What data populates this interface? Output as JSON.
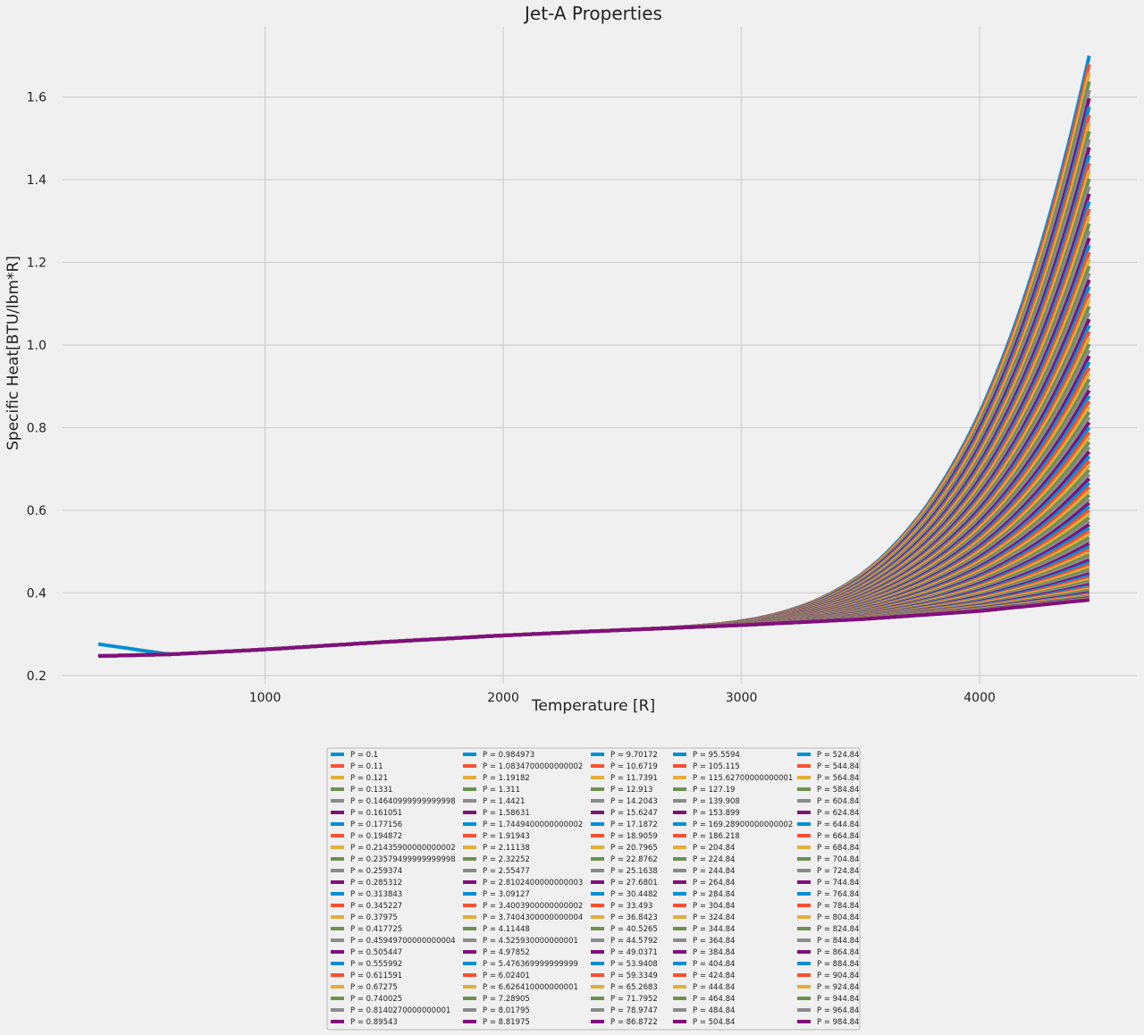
{
  "chart_data": {
    "type": "line",
    "title": "Jet-A Properties",
    "xlabel": "Temperature [R]",
    "ylabel": "Specific Heat[BTU/lbm*R]",
    "xlim": [
      150,
      4660
    ],
    "ylim": [
      0.18,
      1.77
    ],
    "x_ticks": [
      1000,
      2000,
      3000,
      4000
    ],
    "y_ticks": [
      0.2,
      0.4,
      0.6,
      0.8,
      1.0,
      1.2,
      1.4,
      1.6
    ],
    "x_tick_labels": [
      "1000",
      "2000",
      "3000",
      "4000"
    ],
    "y_tick_labels": [
      "0.2",
      "0.4",
      "0.6",
      "0.8",
      "1.0",
      "1.2",
      "1.4",
      "1.6"
    ],
    "grid": true,
    "legend_position": "below plot, centered, 5 columns",
    "style": "fivethirtyeight",
    "x_range_of_each_series": [
      300,
      4460
    ],
    "common_curve": {
      "x": [
        300,
        600,
        1000,
        1500,
        2000,
        2500,
        3000,
        3500,
        4000,
        4460
      ],
      "y": [
        0.247,
        0.251,
        0.263,
        0.281,
        0.297,
        0.31,
        0.322,
        0.336,
        0.356,
        0.383
      ]
    },
    "first_series_start_value": 0.276,
    "max_series_end_value": 1.7,
    "series_colors": [
      "#008fd5",
      "#fc4f30",
      "#e5ae38",
      "#6d904f",
      "#8b8b8b",
      "#810f7c"
    ],
    "series": [
      {
        "name": "P = 0.1"
      },
      {
        "name": "P = 0.11"
      },
      {
        "name": "P = 0.121"
      },
      {
        "name": "P = 0.1331"
      },
      {
        "name": "P = 0.14640999999999998"
      },
      {
        "name": "P = 0.161051"
      },
      {
        "name": "P = 0.177156"
      },
      {
        "name": "P = 0.194872"
      },
      {
        "name": "P = 0.21435900000000002"
      },
      {
        "name": "P = 0.23579499999999998"
      },
      {
        "name": "P = 0.259374"
      },
      {
        "name": "P = 0.285312"
      },
      {
        "name": "P = 0.313843"
      },
      {
        "name": "P = 0.345227"
      },
      {
        "name": "P = 0.37975"
      },
      {
        "name": "P = 0.417725"
      },
      {
        "name": "P = 0.45949700000000004"
      },
      {
        "name": "P = 0.505447"
      },
      {
        "name": "P = 0.555992"
      },
      {
        "name": "P = 0.611591"
      },
      {
        "name": "P = 0.67275"
      },
      {
        "name": "P = 0.740025"
      },
      {
        "name": "P = 0.8140270000000001"
      },
      {
        "name": "P = 0.89543"
      },
      {
        "name": "P = 0.984973"
      },
      {
        "name": "P = 1.0834700000000002"
      },
      {
        "name": "P = 1.19182"
      },
      {
        "name": "P = 1.311"
      },
      {
        "name": "P = 1.4421"
      },
      {
        "name": "P = 1.58631"
      },
      {
        "name": "P = 1.7449400000000002"
      },
      {
        "name": "P = 1.91943"
      },
      {
        "name": "P = 2.11138"
      },
      {
        "name": "P = 2.32252"
      },
      {
        "name": "P = 2.55477"
      },
      {
        "name": "P = 2.8102400000000003"
      },
      {
        "name": "P = 3.09127"
      },
      {
        "name": "P = 3.4003900000000002"
      },
      {
        "name": "P = 3.7404300000000004"
      },
      {
        "name": "P = 4.11448"
      },
      {
        "name": "P = 4.525930000000001"
      },
      {
        "name": "P = 4.97852"
      },
      {
        "name": "P = 5.476369999999999"
      },
      {
        "name": "P = 6.02401"
      },
      {
        "name": "P = 6.626410000000001"
      },
      {
        "name": "P = 7.28905"
      },
      {
        "name": "P = 8.01795"
      },
      {
        "name": "P = 8.81975"
      },
      {
        "name": "P = 9.70172"
      },
      {
        "name": "P = 10.6719"
      },
      {
        "name": "P = 11.7391"
      },
      {
        "name": "P = 12.913"
      },
      {
        "name": "P = 14.2043"
      },
      {
        "name": "P = 15.6247"
      },
      {
        "name": "P = 17.1872"
      },
      {
        "name": "P = 18.9059"
      },
      {
        "name": "P = 20.7965"
      },
      {
        "name": "P = 22.8762"
      },
      {
        "name": "P = 25.1638"
      },
      {
        "name": "P = 27.6801"
      },
      {
        "name": "P = 30.4482"
      },
      {
        "name": "P = 33.493"
      },
      {
        "name": "P = 36.8423"
      },
      {
        "name": "P = 40.5265"
      },
      {
        "name": "P = 44.5792"
      },
      {
        "name": "P = 49.0371"
      },
      {
        "name": "P = 53.9408"
      },
      {
        "name": "P = 59.3349"
      },
      {
        "name": "P = 65.2683"
      },
      {
        "name": "P = 71.7952"
      },
      {
        "name": "P = 78.9747"
      },
      {
        "name": "P = 86.8722"
      },
      {
        "name": "P = 95.5594"
      },
      {
        "name": "P = 105.115"
      },
      {
        "name": "P = 115.62700000000001"
      },
      {
        "name": "P = 127.19"
      },
      {
        "name": "P = 139.908"
      },
      {
        "name": "P = 153.899"
      },
      {
        "name": "P = 169.28900000000002"
      },
      {
        "name": "P = 186.218"
      },
      {
        "name": "P = 204.84"
      },
      {
        "name": "P = 224.84"
      },
      {
        "name": "P = 244.84"
      },
      {
        "name": "P = 264.84"
      },
      {
        "name": "P = 284.84"
      },
      {
        "name": "P = 304.84"
      },
      {
        "name": "P = 324.84"
      },
      {
        "name": "P = 344.84"
      },
      {
        "name": "P = 364.84"
      },
      {
        "name": "P = 384.84"
      },
      {
        "name": "P = 404.84"
      },
      {
        "name": "P = 424.84"
      },
      {
        "name": "P = 444.84"
      },
      {
        "name": "P = 464.84"
      },
      {
        "name": "P = 484.84"
      },
      {
        "name": "P = 504.84"
      },
      {
        "name": "P = 524.84"
      },
      {
        "name": "P = 544.84"
      },
      {
        "name": "P = 564.84"
      },
      {
        "name": "P = 584.84"
      },
      {
        "name": "P = 604.84"
      },
      {
        "name": "P = 624.84"
      },
      {
        "name": "P = 644.84"
      },
      {
        "name": "P = 664.84"
      },
      {
        "name": "P = 684.84"
      },
      {
        "name": "P = 704.84"
      },
      {
        "name": "P = 724.84"
      },
      {
        "name": "P = 744.84"
      },
      {
        "name": "P = 764.84"
      },
      {
        "name": "P = 784.84"
      },
      {
        "name": "P = 804.84"
      },
      {
        "name": "P = 824.84"
      },
      {
        "name": "P = 844.84"
      },
      {
        "name": "P = 864.84"
      },
      {
        "name": "P = 884.84"
      },
      {
        "name": "P = 904.84"
      },
      {
        "name": "P = 924.84"
      },
      {
        "name": "P = 944.84"
      },
      {
        "name": "P = 964.84"
      },
      {
        "name": "P = 984.84"
      }
    ]
  }
}
